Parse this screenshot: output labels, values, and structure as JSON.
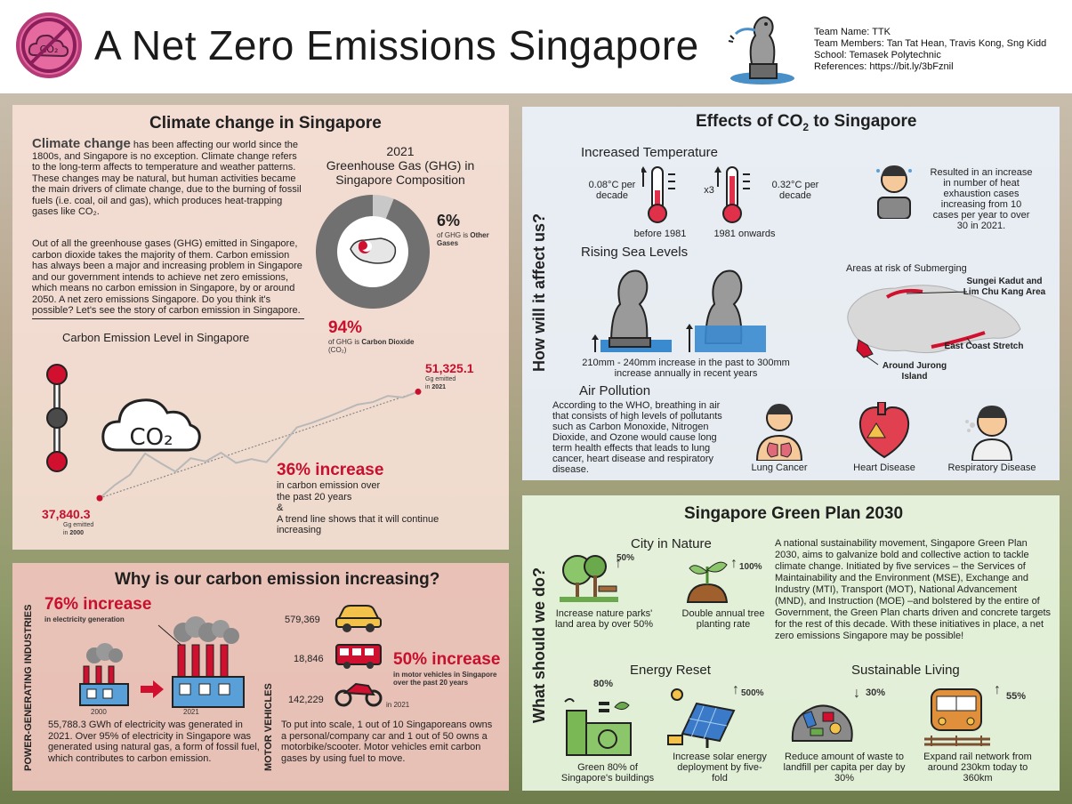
{
  "header": {
    "title": "A Net Zero Emissions Singapore",
    "logo_text": "CO₂",
    "team_name": "Team Name: TTK",
    "team_members": "Team Members: Tan Tat Hean, Travis Kong, Sng Kidd",
    "school": "School: Temasek Polytechnic",
    "references": "References: https://bit.ly/3bFznil"
  },
  "climate": {
    "title": "Climate change in Singapore",
    "lead": "Climate change",
    "para1": " has been affecting our world since the 1800s, and Singapore is no exception. Climate change refers to the long-term affects to temperature and weather patterns. These changes may be natural, but human activities became the main drivers of climate change, due to the burning of fossil fuels (i.e. coal, oil and gas), which produces heat-trapping gases like CO₂.",
    "para2": "Out of all the greenhouse gases (GHG) emitted in Singapore, carbon dioxide takes the majority of them. Carbon emission has always been a major and increasing problem in Singapore and our government intends to achieve net zero emissions, which means no carbon emission in Singapore, by or around 2050. A net zero emissions Singapore. Do you think it's possible? Let's see the story of carbon emission in Singapore.",
    "pie_title_year": "2021",
    "pie_title": "Greenhouse Gas (GHG) in Singapore Composition",
    "other_pct": "6%",
    "other_label_pre": "of GHG is",
    "other_label": "Other Gases",
    "co2_pct": "94%",
    "co2_label_pre": "of GHG is",
    "co2_label": "Carbon Dioxide",
    "co2_label_post": " (CO₂)",
    "line_title": "Carbon Emission Level in Singapore",
    "start_value": "37,840.3",
    "start_unit": "Gg emitted",
    "start_year_pre": "in",
    "start_year": "2000",
    "end_value": "51,325.1",
    "end_unit": "Gg emitted",
    "end_year_pre": "in",
    "end_year": "2021",
    "increase_title": "36% increase",
    "increase_line1": "in carbon emission over",
    "increase_line2": "the past 20 years",
    "increase_amp": "&",
    "increase_line3": "A trend line shows that it will continue",
    "increase_line4": "increasing",
    "co2_icon_text": "CO₂"
  },
  "chart_data": [
    {
      "type": "pie",
      "title": "2021 Greenhouse Gas (GHG) in Singapore Composition",
      "labels": [
        "Carbon Dioxide (CO₂)",
        "Other Gases"
      ],
      "values": [
        94,
        6
      ]
    },
    {
      "type": "line",
      "title": "Carbon Emission Level in Singapore",
      "x": [
        2000,
        2001,
        2002,
        2003,
        2004,
        2005,
        2006,
        2007,
        2008,
        2009,
        2010,
        2011,
        2012,
        2013,
        2014,
        2015,
        2016,
        2017,
        2018,
        2019,
        2020,
        2021
      ],
      "series": [
        {
          "values": [
            37840.3,
            39500,
            40800,
            43500,
            42300,
            41200,
            42900,
            42500,
            43600,
            42300,
            42800,
            42400,
            44500,
            46800,
            47400,
            48100,
            48900,
            49700,
            50000,
            50800,
            50600,
            51325.1
          ]
        }
      ],
      "trend_line": true,
      "ylim": [
        36500,
        52500
      ]
    }
  ],
  "why": {
    "title": "Why is our carbon emission increasing?",
    "power_label": "POWER-GENERATING INDUSTRIES",
    "power_increase": "76% increase",
    "power_increase_sub": "in electricity generation",
    "year_before": "2000",
    "year_after": "2021",
    "power_text": "55,788.3 GWh of electricity was generated in 2021. Over 95% of electricity in Singapore was generated using natural gas, a form of fossil fuel, which contributes to carbon emission.",
    "vehicle_label": "MOTOR VEHICLES",
    "car_count": "579,369",
    "bus_count": "18,846",
    "bike_count": "142,229",
    "vehicle_year": "in 2021",
    "vehicle_increase": "50% increase",
    "vehicle_increase_sub": "in motor vehicles in Singapore over the past 20 years",
    "vehicle_text": "To put into scale, 1 out of 10 Singaporeans owns a personal/company car and 1 out of 50 owns a motorbike/scooter. Motor vehicles emit carbon gases by using fuel to move."
  },
  "effects": {
    "title_pre": "Effects of CO",
    "title_sub": "2",
    "title_post": " to Singapore",
    "side_label": "How will it affect us?",
    "temp_title": "Increased Temperature",
    "temp_before": "0.08°C per decade",
    "temp_times": "x3",
    "temp_after": "0.32°C per decade",
    "temp_before_label": "before 1981",
    "temp_after_label": "1981 onwards",
    "heat_text": "Resulted in an increase in number of heat exhaustion cases increasing from 10 cases per year to over 30 in 2021.",
    "sea_title": "Rising Sea Levels",
    "sea_text": "210mm - 240mm increase in the past to 300mm increase annually in recent years",
    "risk_title": "Areas at risk of Submerging",
    "risk_area1": "Sungei Kadut and Lim Chu Kang Area",
    "risk_area2": "East Coast Stretch",
    "risk_area3": "Around Jurong Island",
    "air_title": "Air Pollution",
    "air_text": "According to the WHO, breathing in air that consists of high levels of pollutants such as Carbon Monoxide, Nitrogen Dioxide, and Ozone would cause long term health effects that leads to lung cancer, heart disease and respiratory disease.",
    "disease1": "Lung Cancer",
    "disease2": "Heart Disease",
    "disease3": "Respiratory Disease"
  },
  "green": {
    "title": "Singapore Green Plan 2030",
    "side_label": "What should we do?",
    "nature_title": "City in Nature",
    "parks_pct": "50%",
    "parks_text": "Increase nature parks' land area by over 50%",
    "trees_pct": "100%",
    "trees_text": "Double annual tree planting rate",
    "plan_text": "A national sustainability movement, Singapore Green Plan 2030, aims to galvanize bold and collective action to tackle climate change. Initiated by five services – the Services of Maintainability and the Environment (MSE), Exchange and Industry (MTI), Transport (MOT), National Advancement (MND), and Instruction (MOE) –and bolstered by the entire of Government, the Green Plan charts driven and concrete targets for the rest of this decade. With these initiatives in place, a net zero emissions Singapore may be possible!",
    "energy_title": "Energy Reset",
    "buildings_pct": "80%",
    "buildings_text": "Green 80% of Singapore's buildings",
    "solar_pct": "500%",
    "solar_text": "Increase solar energy deployment by five-fold",
    "living_title": "Sustainable Living",
    "waste_pct": "30%",
    "waste_text": "Reduce amount of waste to landfill per capita per day by 30%",
    "rail_pct": "55%",
    "rail_text": "Expand rail network from around 230km today to 360km"
  },
  "colors": {
    "accent_red": "#c8102e",
    "pie_dark": "#707070",
    "pie_light": "#c8c8c8"
  }
}
